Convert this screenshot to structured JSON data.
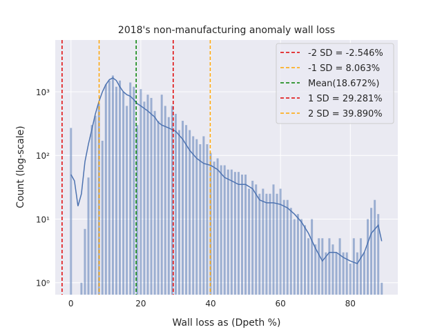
{
  "chart_data": {
    "type": "bar",
    "title": "2018's non-manufacturing anomaly wall loss",
    "x_label": "Wall loss as (Dpeth %)",
    "y_label": "Count (log-scale)",
    "log_y": true,
    "grid": true,
    "legend": "upper right",
    "color": "#4c72b0",
    "xlim": [
      -4.5,
      93.6
    ],
    "ylim": [
      0.65,
      6500
    ],
    "xticks": [
      0,
      20,
      40,
      60,
      80
    ],
    "yticks": [
      {
        "value": 1,
        "label": "10⁰"
      },
      {
        "value": 10,
        "label": "10¹"
      },
      {
        "value": 100,
        "label": "10²"
      },
      {
        "value": 1000,
        "label": "10³"
      }
    ],
    "x": [
      0,
      1,
      2,
      3,
      4,
      5,
      6,
      7,
      8,
      9,
      10,
      11,
      12,
      13,
      14,
      15,
      16,
      17,
      18,
      19,
      20,
      21,
      22,
      23,
      24,
      25,
      26,
      27,
      28,
      29,
      30,
      31,
      32,
      33,
      34,
      35,
      36,
      37,
      38,
      39,
      40,
      41,
      42,
      43,
      44,
      45,
      46,
      47,
      48,
      49,
      50,
      51,
      52,
      53,
      54,
      55,
      56,
      57,
      58,
      59,
      60,
      61,
      62,
      63,
      64,
      65,
      66,
      67,
      68,
      69,
      70,
      71,
      72,
      73,
      74,
      75,
      76,
      77,
      78,
      79,
      80,
      81,
      82,
      83,
      84,
      85,
      86,
      87,
      88,
      89
    ],
    "values": [
      270,
      null,
      null,
      1,
      7,
      45,
      300,
      420,
      650,
      170,
      1300,
      1500,
      1800,
      1200,
      1500,
      1000,
      600,
      1400,
      1200,
      300,
      1100,
      700,
      900,
      800,
      500,
      350,
      900,
      600,
      400,
      600,
      450,
      250,
      350,
      300,
      250,
      200,
      180,
      150,
      200,
      150,
      110,
      80,
      90,
      70,
      70,
      60,
      60,
      55,
      55,
      50,
      50,
      30,
      40,
      35,
      25,
      30,
      25,
      25,
      35,
      25,
      30,
      20,
      20,
      15,
      10,
      12,
      10,
      8,
      5,
      10,
      4,
      5,
      5,
      3,
      5,
      4,
      3,
      5,
      3,
      3,
      2,
      5,
      3,
      5,
      3,
      10,
      15,
      20,
      12,
      1
    ],
    "kde": {
      "color": "#4c72b0",
      "x": [
        0,
        1,
        2,
        3,
        4,
        5,
        6,
        7,
        8,
        9,
        10,
        11,
        12,
        13,
        14,
        15,
        16,
        17,
        18,
        19,
        20,
        22,
        24,
        25,
        26,
        28,
        30,
        32,
        34,
        36,
        38,
        40,
        42,
        44,
        46,
        48,
        50,
        52,
        54,
        56,
        58,
        60,
        62,
        64,
        66,
        68,
        70,
        72,
        74,
        76,
        78,
        80,
        82,
        84,
        86,
        88,
        89
      ],
      "values": [
        50,
        40,
        16,
        25,
        80,
        150,
        260,
        450,
        700,
        1000,
        1300,
        1550,
        1650,
        1500,
        1200,
        1000,
        900,
        850,
        750,
        650,
        600,
        500,
        400,
        330,
        300,
        270,
        240,
        180,
        120,
        90,
        75,
        70,
        60,
        45,
        40,
        35,
        35,
        30,
        20,
        18,
        18,
        17,
        15,
        12,
        9,
        6,
        3.5,
        2.2,
        3,
        3,
        2.5,
        2.2,
        2,
        3,
        6,
        8,
        4.5
      ]
    },
    "vlines": [
      {
        "label": "-2 SD = -2.546%",
        "value": -2.546,
        "color": "#e00000"
      },
      {
        "label": "-1 SD = 8.063%",
        "value": 8.063,
        "color": "#ffa500"
      },
      {
        "label": "Mean(18.672%)",
        "value": 18.672,
        "color": "#008000"
      },
      {
        "label": "1 SD = 29.281%",
        "value": 29.281,
        "color": "#e00000"
      },
      {
        "label": "2 SD = 39.890%",
        "value": 39.89,
        "color": "#ffa500"
      }
    ]
  }
}
